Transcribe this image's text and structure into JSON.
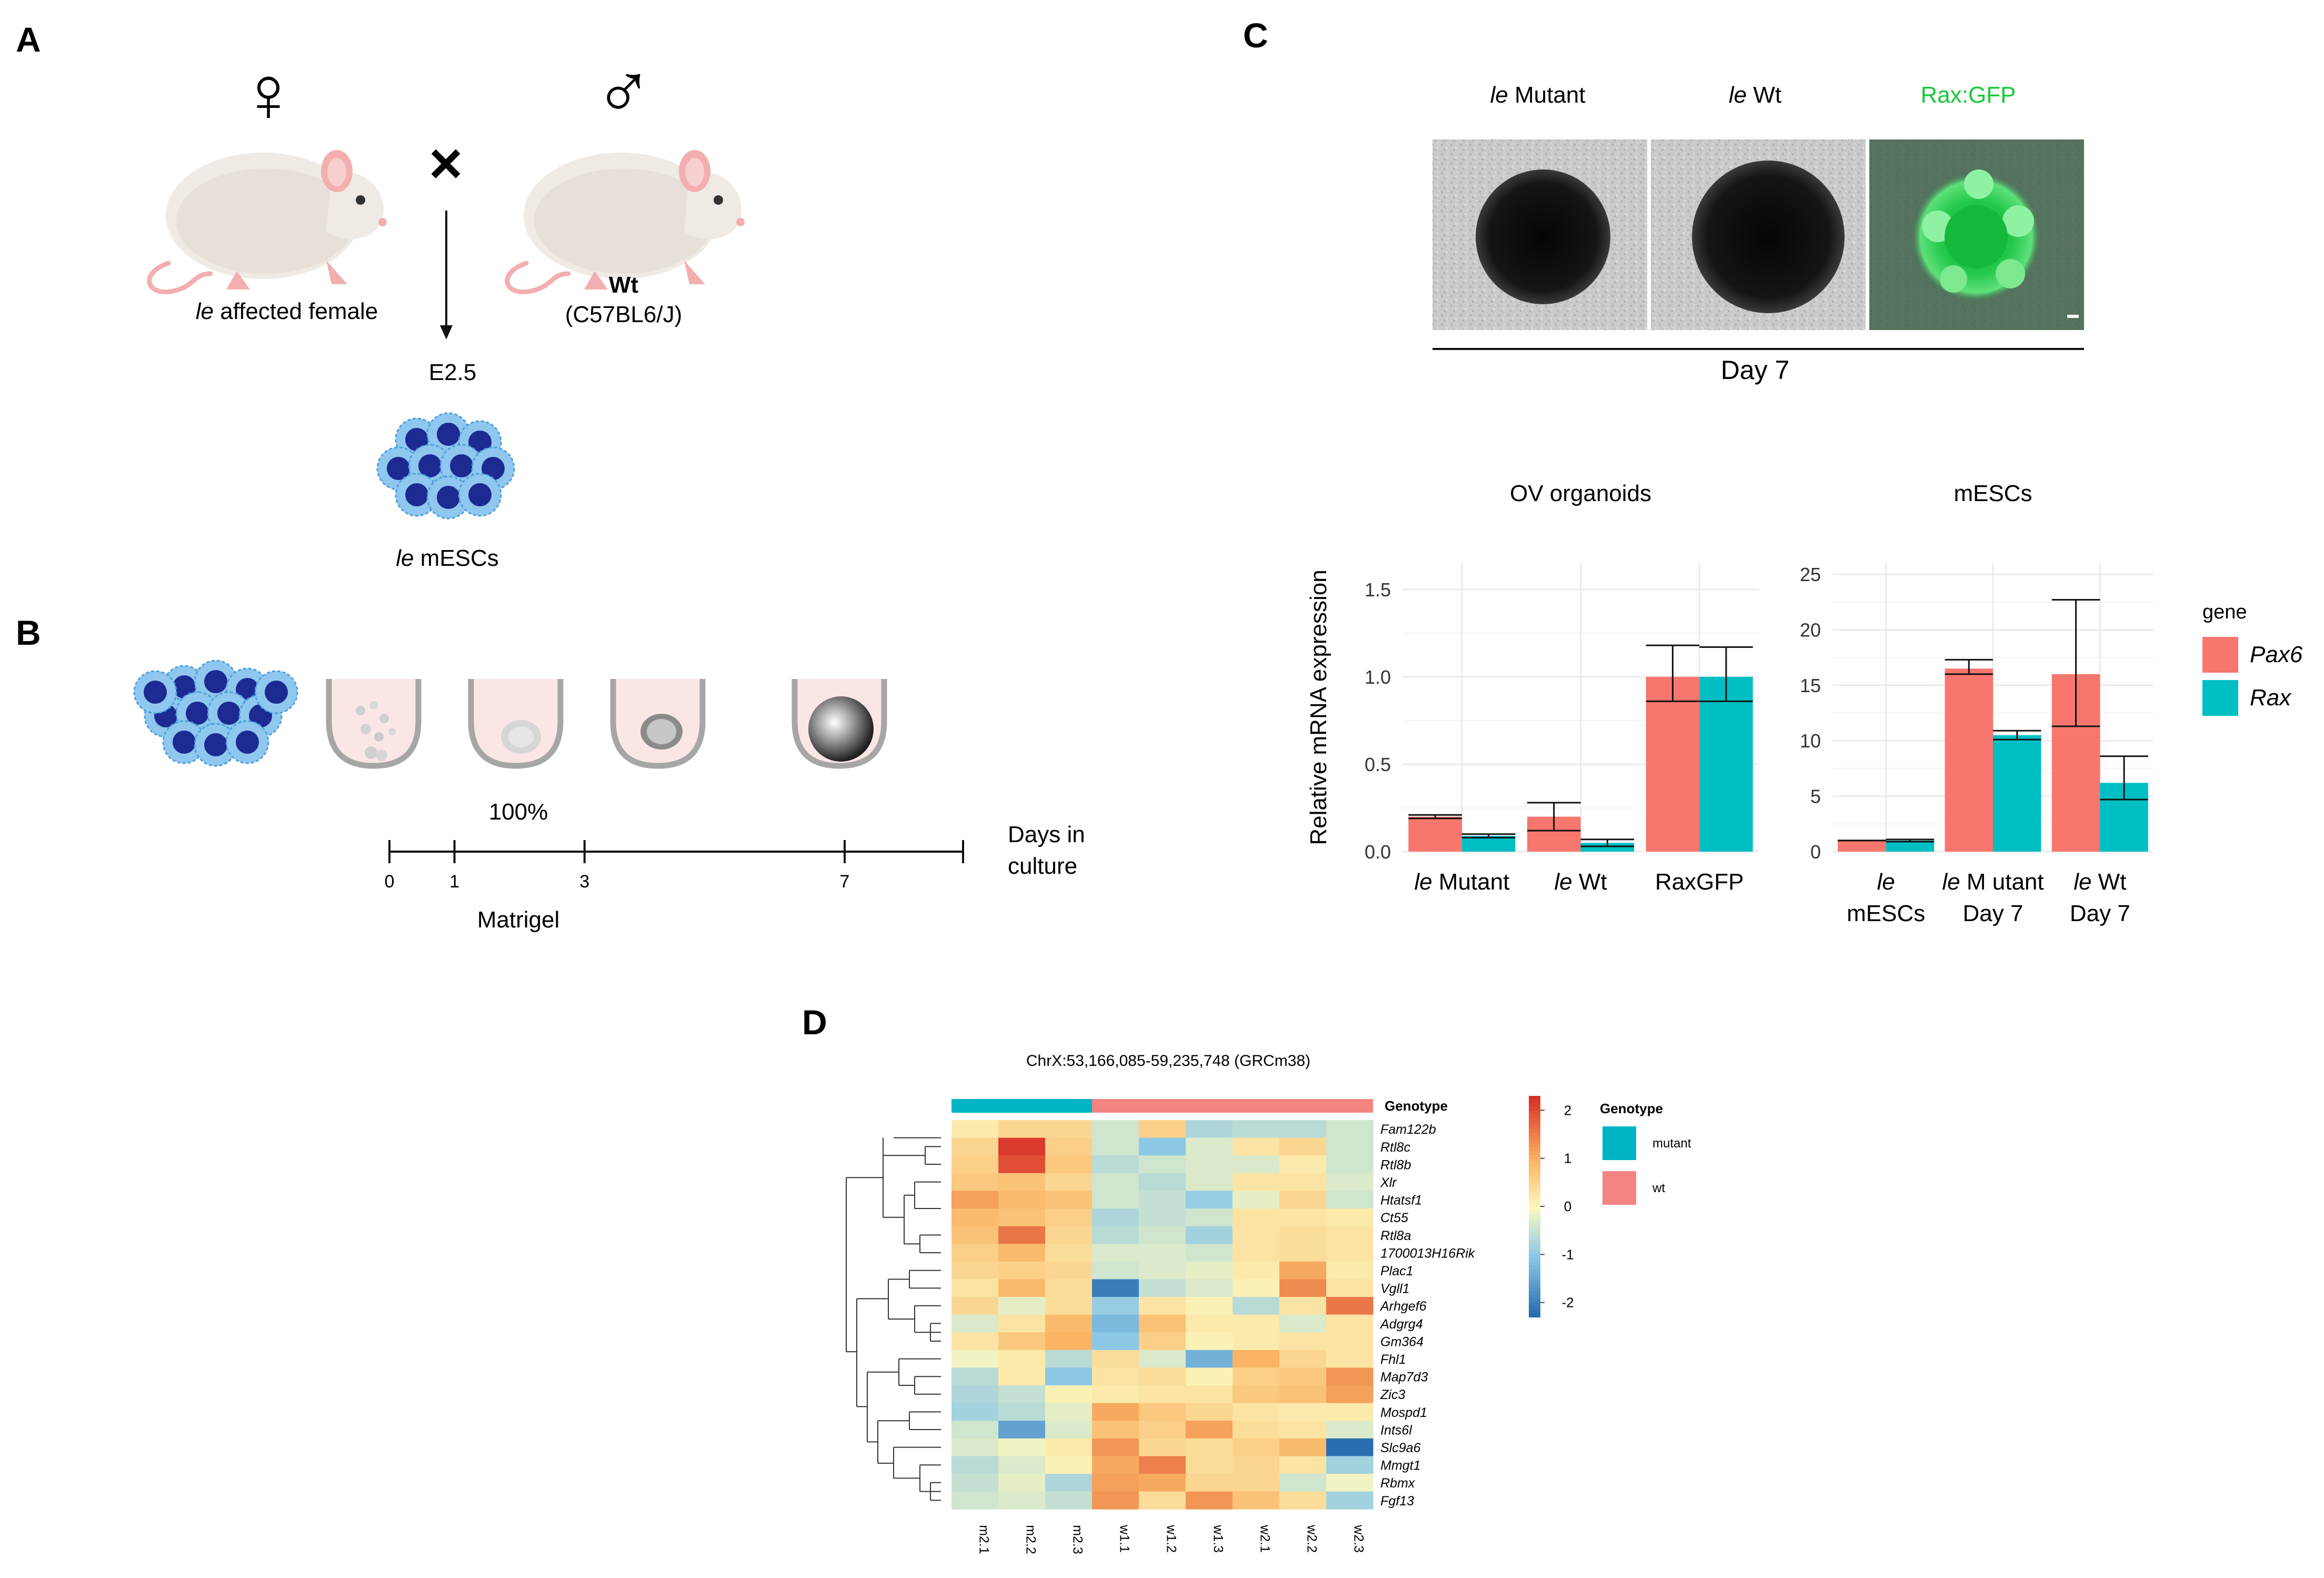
{
  "panels": {
    "a": "A",
    "b": "B",
    "c": "C",
    "d": "D"
  },
  "panel_a": {
    "female_symbol": "♀",
    "male_symbol": "♂",
    "cross_symbol": "×",
    "female_label_italic": "le",
    "female_label_rest": " affected female",
    "wt_label": "Wt",
    "wt_strain": "(C57BL6/J)",
    "stage": "E2.5",
    "mescs_label_italic": "le",
    "mescs_label_rest": " mESCs"
  },
  "panel_b": {
    "percent": "100%",
    "axis_title_line1": "Days in",
    "axis_title_line2": "culture",
    "ticks": [
      {
        "day": 0,
        "label": "0"
      },
      {
        "day": 1,
        "label": "1"
      },
      {
        "day": 3,
        "label": "3"
      },
      {
        "day": 7,
        "label": "7"
      }
    ],
    "matrigel_label": "Matrigel"
  },
  "panel_c": {
    "img_label_1_italic": "le",
    "img_label_1_rest": " Mutant",
    "img_label_2_italic": "le",
    "img_label_2_rest": " Wt",
    "img_label_3": "Rax:GFP",
    "day_label": "Day 7",
    "legend_title": "gene",
    "colors": {
      "Pax6": "#F8766D",
      "Rax": "#00BFC4",
      "gfp": "#16c936"
    }
  },
  "chart_data": [
    {
      "type": "bar",
      "title": "OV organoids",
      "ylabel": "Relative mRNA expression",
      "ylim": [
        0,
        1.65
      ],
      "yticks": [
        "0.0",
        "0.5",
        "1.0",
        "1.5"
      ],
      "categories": [
        {
          "italic": "le",
          "rest": " Mutant"
        },
        {
          "italic": "le",
          "rest": " Wt"
        },
        {
          "italic": "",
          "rest": "RaxGFP"
        }
      ],
      "series": [
        {
          "name": "Pax6",
          "values": [
            0.2,
            0.2,
            1.0
          ],
          "err_low": [
            0.19,
            0.12,
            0.86
          ],
          "err_high": [
            0.21,
            0.28,
            1.18
          ]
        },
        {
          "name": "Rax",
          "values": [
            0.09,
            0.05,
            1.0
          ],
          "err_low": [
            0.08,
            0.03,
            0.86
          ],
          "err_high": [
            0.1,
            0.07,
            1.17
          ]
        }
      ]
    },
    {
      "type": "bar",
      "title": "mESCs",
      "ylim": [
        0,
        26
      ],
      "yticks": [
        "0",
        "5",
        "10",
        "15",
        "20",
        "25"
      ],
      "categories": [
        {
          "italic": "le",
          "rest": "",
          "line2": "mESCs"
        },
        {
          "italic": "le",
          "rest": " M utant",
          "line2": "Day 7"
        },
        {
          "italic": "le",
          "rest": " Wt",
          "line2": "Day 7"
        }
      ],
      "series": [
        {
          "name": "Pax6",
          "values": [
            1.0,
            16.5,
            16.0
          ],
          "err_low": [
            1.0,
            16.0,
            11.3
          ],
          "err_high": [
            1.0,
            17.3,
            22.7
          ]
        },
        {
          "name": "Rax",
          "values": [
            1.0,
            10.5,
            6.2
          ],
          "err_low": [
            0.9,
            10.1,
            4.7
          ],
          "err_high": [
            1.1,
            10.9,
            8.6
          ]
        }
      ]
    },
    {
      "type": "heatmap",
      "title": "ChrX:53,166,085-59,235,748 (GRCm38)",
      "annotation_label": "Genotype",
      "columns": [
        "m2.1",
        "m2.2",
        "m2.3",
        "w1.1",
        "w1.2",
        "w1.3",
        "w2.1",
        "w2.2",
        "w2.3"
      ],
      "column_genotype": [
        "mutant",
        "mutant",
        "mutant",
        "wt",
        "wt",
        "wt",
        "wt",
        "wt",
        "wt"
      ],
      "rows": [
        "Fam122b",
        "Rtl8c",
        "Rtl8b",
        "Xlr",
        "Htatsf1",
        "Ct55",
        "Rtl8a",
        "1700013H16Rik",
        "Plac1",
        "Vgll1",
        "Arhgef6",
        "Adgrg4",
        "Gm364",
        "Fhl1",
        "Map7d3",
        "Zic3",
        "Mospd1",
        "Ints6l",
        "Slc9a6",
        "Mmgt1",
        "Rbmx",
        "Fgf13"
      ],
      "values": [
        [
          0.2,
          0.5,
          0.5,
          -0.4,
          0.6,
          -0.7,
          -0.6,
          -0.6,
          -0.4
        ],
        [
          0.5,
          2.2,
          0.6,
          -0.4,
          -1.0,
          -0.3,
          0.3,
          0.5,
          -0.4
        ],
        [
          0.6,
          2.0,
          0.7,
          -0.6,
          -0.4,
          -0.3,
          -0.3,
          0.2,
          -0.4
        ],
        [
          0.7,
          0.8,
          0.5,
          -0.4,
          -0.6,
          -0.3,
          0.3,
          0.3,
          -0.3
        ],
        [
          1.2,
          0.9,
          0.8,
          -0.4,
          -0.5,
          -0.9,
          -0.2,
          0.5,
          -0.4
        ],
        [
          0.9,
          0.8,
          0.6,
          -0.7,
          -0.5,
          -0.4,
          0.3,
          0.3,
          0.2
        ],
        [
          0.8,
          1.6,
          0.5,
          -0.6,
          -0.4,
          -0.8,
          0.3,
          0.4,
          0.3
        ],
        [
          0.6,
          0.9,
          0.4,
          -0.3,
          -0.3,
          -0.4,
          0.3,
          0.4,
          0.3
        ],
        [
          0.5,
          0.6,
          0.5,
          -0.4,
          -0.3,
          -0.2,
          0.2,
          1.1,
          0.2
        ],
        [
          0.3,
          0.9,
          0.4,
          -2.0,
          -0.5,
          -0.3,
          0.1,
          1.4,
          0.3
        ],
        [
          0.5,
          -0.2,
          0.4,
          -0.9,
          0.3,
          0.1,
          -0.6,
          0.3,
          1.6
        ],
        [
          -0.3,
          0.3,
          0.9,
          -1.2,
          0.8,
          0.2,
          0.2,
          -0.3,
          0.3
        ],
        [
          0.3,
          0.7,
          1.0,
          -1.0,
          0.6,
          0.1,
          0.2,
          0.3,
          0.3
        ],
        [
          -0.1,
          0.2,
          -0.6,
          0.4,
          -0.3,
          -1.3,
          1.0,
          0.5,
          0.3
        ],
        [
          -0.6,
          0.2,
          -1.0,
          0.3,
          0.4,
          0.1,
          0.6,
          0.7,
          1.3
        ],
        [
          -0.7,
          -0.5,
          0.1,
          0.2,
          0.3,
          0.3,
          0.7,
          0.8,
          1.2
        ],
        [
          -0.8,
          -0.6,
          -0.2,
          1.1,
          0.7,
          0.5,
          0.3,
          0.2,
          0.2
        ],
        [
          -0.4,
          -1.5,
          -0.3,
          0.8,
          0.6,
          1.2,
          0.4,
          0.3,
          -0.3
        ],
        [
          -0.3,
          -0.1,
          0.2,
          1.3,
          0.5,
          0.4,
          0.6,
          0.9,
          -2.2
        ],
        [
          -0.6,
          -0.3,
          0.1,
          1.1,
          1.5,
          0.4,
          0.5,
          0.3,
          -0.8
        ],
        [
          -0.5,
          -0.2,
          -0.7,
          1.2,
          1.1,
          0.5,
          0.5,
          -0.4,
          -0.1
        ],
        [
          -0.4,
          -0.3,
          -0.5,
          1.3,
          0.4,
          1.3,
          0.8,
          0.4,
          -0.8
        ]
      ],
      "colorbar_ticks": [
        {
          "v": 2,
          "label": "2"
        },
        {
          "v": 1,
          "label": "1"
        },
        {
          "v": 0,
          "label": "0"
        },
        {
          "v": -1,
          "label": "-1"
        },
        {
          "v": -2,
          "label": "-2"
        }
      ],
      "legend": [
        {
          "name": "mutant",
          "color": "#00B3C4"
        },
        {
          "name": "wt",
          "color": "#F48481"
        }
      ]
    }
  ]
}
